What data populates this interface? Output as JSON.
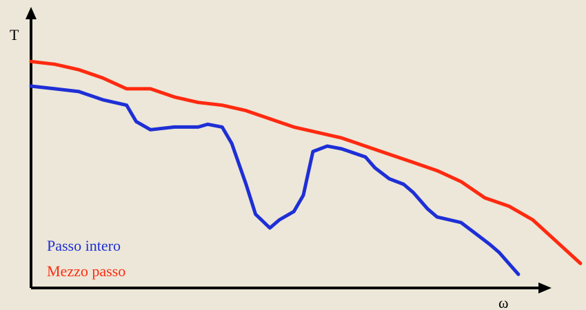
{
  "chart_data": {
    "type": "line",
    "ylabel": "T",
    "xlabel": "ω",
    "grid": false,
    "legend_placement": "bottom-left",
    "legend": [
      {
        "label": "Passo intero",
        "color": "#1e2fd6"
      },
      {
        "label": "Mezzo passo",
        "color": "#ff2a10"
      }
    ],
    "series": [
      {
        "name": "Mezzo passo",
        "color": "#ff2a10",
        "points": [
          [
            0.0,
            0.83
          ],
          [
            0.05,
            0.82
          ],
          [
            0.1,
            0.8
          ],
          [
            0.15,
            0.77
          ],
          [
            0.2,
            0.73
          ],
          [
            0.25,
            0.73
          ],
          [
            0.3,
            0.7
          ],
          [
            0.35,
            0.68
          ],
          [
            0.4,
            0.67
          ],
          [
            0.45,
            0.65
          ],
          [
            0.5,
            0.62
          ],
          [
            0.55,
            0.59
          ],
          [
            0.6,
            0.57
          ],
          [
            0.65,
            0.55
          ],
          [
            0.7,
            0.52
          ],
          [
            0.75,
            0.49
          ],
          [
            0.8,
            0.46
          ],
          [
            0.85,
            0.43
          ],
          [
            0.9,
            0.39
          ],
          [
            0.95,
            0.33
          ],
          [
            1.0,
            0.3
          ],
          [
            1.05,
            0.25
          ],
          [
            1.1,
            0.17
          ],
          [
            1.15,
            0.09
          ]
        ]
      },
      {
        "name": "Passo intero",
        "color": "#1e2fd6",
        "points": [
          [
            0.0,
            0.74
          ],
          [
            0.05,
            0.73
          ],
          [
            0.1,
            0.72
          ],
          [
            0.15,
            0.69
          ],
          [
            0.2,
            0.67
          ],
          [
            0.22,
            0.61
          ],
          [
            0.25,
            0.58
          ],
          [
            0.3,
            0.59
          ],
          [
            0.35,
            0.59
          ],
          [
            0.37,
            0.6
          ],
          [
            0.4,
            0.59
          ],
          [
            0.42,
            0.53
          ],
          [
            0.45,
            0.38
          ],
          [
            0.47,
            0.27
          ],
          [
            0.5,
            0.22
          ],
          [
            0.52,
            0.25
          ],
          [
            0.55,
            0.28
          ],
          [
            0.57,
            0.34
          ],
          [
            0.58,
            0.42
          ],
          [
            0.59,
            0.5
          ],
          [
            0.62,
            0.52
          ],
          [
            0.65,
            0.51
          ],
          [
            0.7,
            0.48
          ],
          [
            0.72,
            0.44
          ],
          [
            0.75,
            0.4
          ],
          [
            0.78,
            0.38
          ],
          [
            0.8,
            0.35
          ],
          [
            0.83,
            0.29
          ],
          [
            0.85,
            0.26
          ],
          [
            0.9,
            0.24
          ],
          [
            0.93,
            0.2
          ],
          [
            0.96,
            0.16
          ],
          [
            0.98,
            0.13
          ],
          [
            1.0,
            0.09
          ],
          [
            1.02,
            0.05
          ]
        ]
      }
    ]
  }
}
